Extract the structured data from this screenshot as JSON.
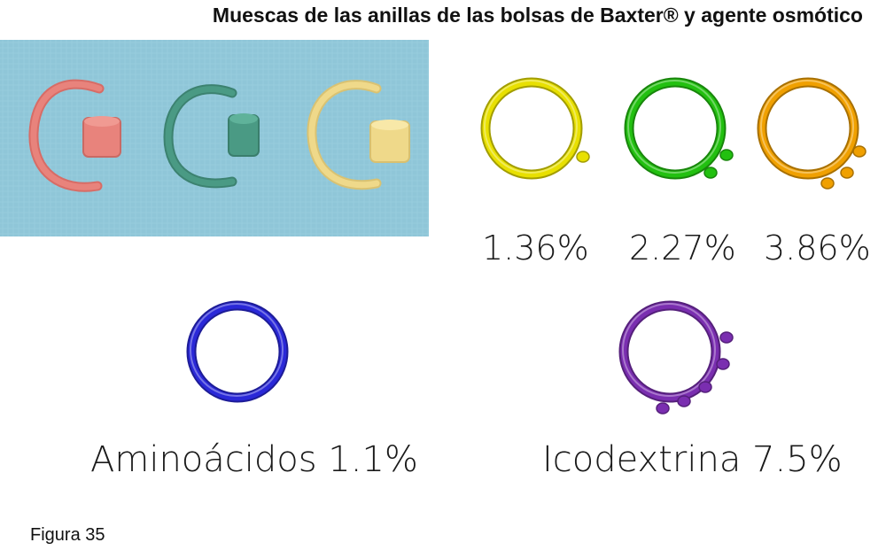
{
  "title": "Muescas de las anillas de las bolsas de Baxter® y agente osmótico",
  "photo": {
    "background_color": "#8fc6d8",
    "rings": [
      {
        "icon": "pink-bag-ring-icon",
        "color": "#e8837c"
      },
      {
        "icon": "green-bag-ring-icon",
        "color": "#4a9a84"
      },
      {
        "icon": "yellow-bag-ring-icon",
        "color": "#efd98a"
      }
    ]
  },
  "rings": [
    {
      "label": "1.36%",
      "color": "#e8e000",
      "notches": 1,
      "icon": "yellow-ring-icon"
    },
    {
      "label": "2.27%",
      "color": "#22c010",
      "notches": 2,
      "icon": "green-ring-icon"
    },
    {
      "label": "3.86%",
      "color": "#f0a000",
      "notches": 3,
      "icon": "orange-ring-icon"
    },
    {
      "label": "Aminoácidos 1.1%",
      "color": "#2a28d8",
      "notches": 0,
      "icon": "blue-ring-icon"
    },
    {
      "label": "Icodextrina 7.5%",
      "color": "#7a2eb0",
      "notches": 5,
      "icon": "purple-ring-icon"
    }
  ],
  "caption": "Figura 35"
}
